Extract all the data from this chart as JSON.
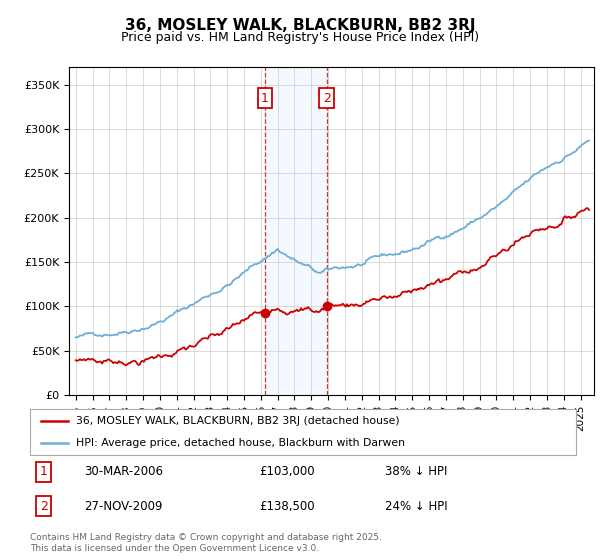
{
  "title": "36, MOSLEY WALK, BLACKBURN, BB2 3RJ",
  "subtitle": "Price paid vs. HM Land Registry's House Price Index (HPI)",
  "legend_line1": "36, MOSLEY WALK, BLACKBURN, BB2 3RJ (detached house)",
  "legend_line2": "HPI: Average price, detached house, Blackburn with Darwen",
  "footer": "Contains HM Land Registry data © Crown copyright and database right 2025.\nThis data is licensed under the Open Government Licence v3.0.",
  "sale1_date": "30-MAR-2006",
  "sale1_price": "£103,000",
  "sale1_hpi": "38% ↓ HPI",
  "sale2_date": "27-NOV-2009",
  "sale2_price": "£138,500",
  "sale2_hpi": "24% ↓ HPI",
  "hpi_color": "#6baed6",
  "price_color": "#cc0000",
  "vband_color": "#ddeeff",
  "sale1_x": 2006.25,
  "sale2_x": 2009.92,
  "ylim_min": 0,
  "ylim_max": 370000,
  "background_color": "#ffffff",
  "grid_color": "#cccccc",
  "start_year": 1995,
  "end_year": 2025,
  "n_points": 370
}
